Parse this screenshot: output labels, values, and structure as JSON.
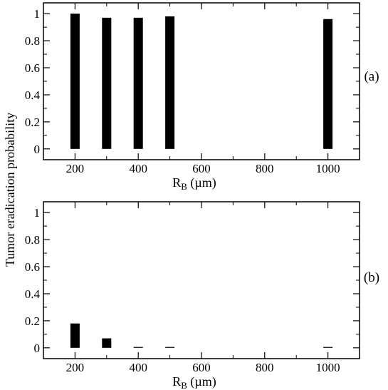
{
  "chart_data": [
    {
      "type": "bar",
      "panel_label": "(a)",
      "xlabel": "R",
      "xlabel_sub": "B",
      "xlabel_unit": " (µm)",
      "ylabel": "Tumor eradication probability",
      "xlim": [
        100,
        1100
      ],
      "ylim": [
        -0.08,
        1.08
      ],
      "xticks": [
        200,
        400,
        600,
        800,
        1000
      ],
      "yticks": [
        0,
        0.2,
        0.4,
        0.6,
        0.8,
        1
      ],
      "ytick_labels": [
        "0",
        "0.2",
        "0.4",
        "0.6",
        "0.8",
        "1"
      ],
      "x": [
        200,
        300,
        400,
        500,
        1000
      ],
      "values": [
        1.0,
        0.97,
        0.97,
        0.98,
        0.96
      ],
      "bar_color": "#000000"
    },
    {
      "type": "bar",
      "panel_label": "(b)",
      "xlabel": "R",
      "xlabel_sub": "B",
      "xlabel_unit": " (µm)",
      "xlim": [
        100,
        1100
      ],
      "ylim": [
        -0.08,
        1.08
      ],
      "xticks": [
        200,
        400,
        600,
        800,
        1000
      ],
      "yticks": [
        0,
        0.2,
        0.4,
        0.6,
        0.8,
        1
      ],
      "ytick_labels": [
        "0",
        "0.2",
        "0.4",
        "0.6",
        "0.8",
        "1"
      ],
      "x": [
        200,
        300,
        400,
        500,
        1000
      ],
      "values": [
        0.18,
        0.07,
        0.0,
        0.0,
        0.0
      ],
      "bar_color": "#000000"
    }
  ]
}
